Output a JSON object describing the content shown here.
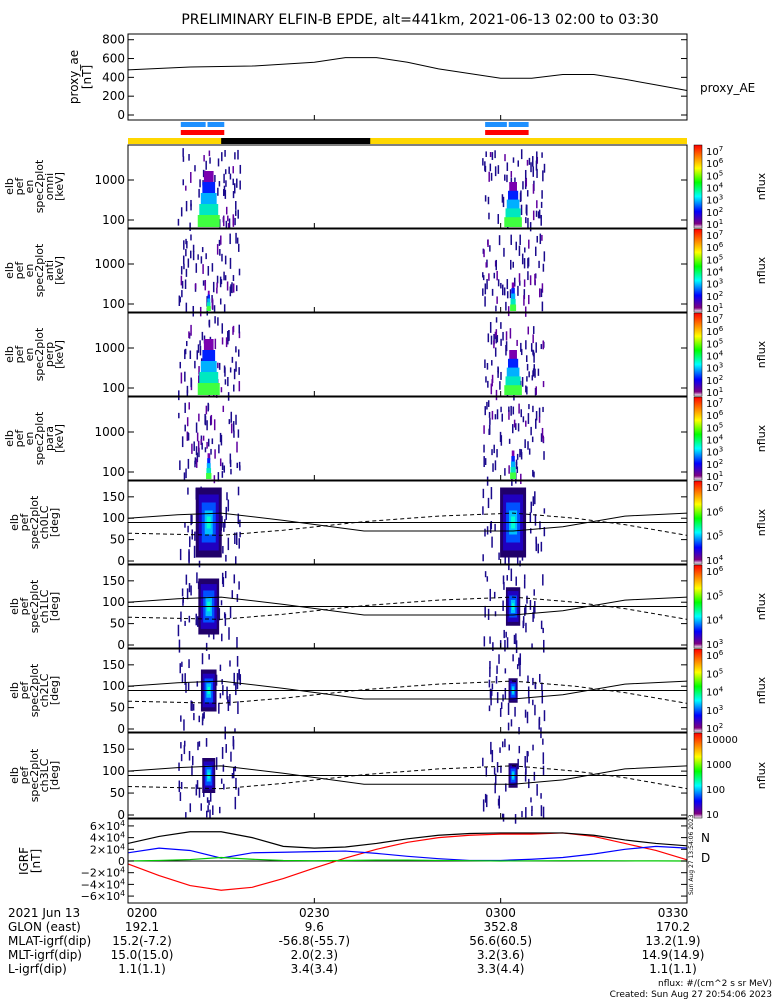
{
  "title": "PRELIMINARY ELFIN-B EPDE, alt=441km, 2021-06-13 02:00 to 03:30",
  "footer": {
    "units": "nflux: #/(cm^2 s sr MeV)",
    "created": "Created: Sun Aug 27 20:54:06 2023",
    "stamp": "Sun Aug 27 13:54:06 2023"
  },
  "colors": {
    "n_bar": "#1e90ff",
    "d_bar": "#ff0000",
    "sci_zone": "#ffd700",
    "eclipse": "#000000",
    "bx": "#ff0000",
    "by": "#00c800",
    "bz": "#0000ff",
    "bmag": "#000000"
  },
  "chart_data": [
    {
      "type": "line",
      "panel": "proxy_ae",
      "ylabel": [
        "proxy_ae",
        "[nT]"
      ],
      "legend": "proxy_AE",
      "yticks": [
        "800",
        "600",
        "400",
        "200",
        "0"
      ],
      "ylim": [
        0,
        850
      ],
      "x_minutes": [
        0,
        10,
        20,
        30,
        35,
        40,
        45,
        50,
        60,
        65,
        70,
        75,
        80,
        85,
        90
      ],
      "values": [
        480,
        510,
        520,
        560,
        610,
        610,
        560,
        490,
        390,
        390,
        430,
        430,
        380,
        320,
        260
      ]
    },
    {
      "type": "heatmap",
      "panel": "omni",
      "ylabel": [
        "elb",
        "pef",
        "en",
        "spec2plot",
        "omni",
        "[keV]"
      ],
      "yticks": [
        "1000",
        "100"
      ],
      "colorbar": {
        "label": "nflux",
        "ticks": [
          "10^7",
          "10^6",
          "10^5",
          "10^4",
          "10^3",
          "10^2",
          "10^1"
        ]
      }
    },
    {
      "type": "heatmap",
      "panel": "anti",
      "ylabel": [
        "elb",
        "pef",
        "en",
        "spec2plot",
        "anti",
        "[keV]"
      ],
      "yticks": [
        "1000",
        "100"
      ],
      "colorbar": {
        "label": "nflux",
        "ticks": [
          "10^7",
          "10^6",
          "10^5",
          "10^4",
          "10^3",
          "10^2",
          "10^1"
        ]
      }
    },
    {
      "type": "heatmap",
      "panel": "perp",
      "ylabel": [
        "elb",
        "pef",
        "en",
        "spec2plot",
        "perp",
        "[keV]"
      ],
      "yticks": [
        "1000",
        "100"
      ],
      "colorbar": {
        "label": "nflux",
        "ticks": [
          "10^7",
          "10^6",
          "10^5",
          "10^4",
          "10^3",
          "10^2",
          "10^1"
        ]
      }
    },
    {
      "type": "heatmap",
      "panel": "para",
      "ylabel": [
        "elb",
        "pef",
        "en",
        "spec2plot",
        "para",
        "[keV]"
      ],
      "yticks": [
        "1000",
        "100"
      ],
      "colorbar": {
        "label": "nflux",
        "ticks": [
          "10^7",
          "10^6",
          "10^5",
          "10^4",
          "10^3",
          "10^2",
          "10^1"
        ]
      }
    },
    {
      "type": "heatmap",
      "panel": "ch0LC",
      "ylabel": [
        "elb",
        "pef",
        "spec2plot",
        "ch0LC",
        "[deg]"
      ],
      "yticks": [
        "150",
        "100",
        "50",
        "0"
      ],
      "colorbar": {
        "label": "nflux",
        "ticks": [
          "10^7",
          "10^6",
          "10^5",
          "10^4"
        ]
      }
    },
    {
      "type": "heatmap",
      "panel": "ch1LC",
      "ylabel": [
        "elb",
        "pef",
        "spec2plot",
        "ch1LC",
        "[deg]"
      ],
      "yticks": [
        "150",
        "100",
        "50",
        "0"
      ],
      "colorbar": {
        "label": "nflux",
        "ticks": [
          "10^6",
          "10^5",
          "10^4",
          "10^3"
        ]
      }
    },
    {
      "type": "heatmap",
      "panel": "ch2LC",
      "ylabel": [
        "elb",
        "pef",
        "spec2plot",
        "ch2LC",
        "[deg]"
      ],
      "yticks": [
        "150",
        "100",
        "50",
        "0"
      ],
      "colorbar": {
        "label": "nflux",
        "ticks": [
          "10^6",
          "10^5",
          "10^4",
          "10^3",
          "10^2"
        ]
      }
    },
    {
      "type": "heatmap",
      "panel": "ch3LC",
      "ylabel": [
        "elb",
        "pef",
        "spec2plot",
        "ch3LC",
        "[deg]"
      ],
      "yticks": [
        "150",
        "100",
        "50",
        "0"
      ],
      "colorbar": {
        "label": "nflux",
        "ticks": [
          "10000",
          "1000",
          "100",
          "10"
        ]
      }
    },
    {
      "type": "line",
      "panel": "igrf",
      "ylabel": [
        "IGRF",
        "[nT]"
      ],
      "yticks": [
        "6×10^4",
        "4×10^4",
        "2×10^4",
        "0",
        "−2×10^4",
        "−4×10^4",
        "−6×10^4"
      ],
      "legend": [
        "N",
        "D"
      ],
      "ylim": [
        -65000,
        65000
      ],
      "x_minutes": [
        0,
        5,
        10,
        15,
        20,
        25,
        30,
        35,
        40,
        45,
        50,
        55,
        60,
        65,
        70,
        75,
        80,
        85,
        90
      ],
      "series": [
        {
          "values": [
            -5000,
            -25000,
            -42000,
            -50000,
            -45000,
            -30000,
            -12000,
            5000,
            20000,
            32000,
            40000,
            44000,
            46000,
            46000,
            48000,
            42000,
            30000,
            18000,
            2000
          ]
        },
        {
          "values": [
            14000,
            22000,
            18000,
            5000,
            14000,
            15000,
            16000,
            17000,
            13000,
            8000,
            4000,
            1000,
            1000,
            3000,
            6000,
            12000,
            20000,
            25000,
            22000
          ]
        },
        {
          "values": [
            0,
            1000,
            2500,
            6000,
            3000,
            1000,
            500,
            800,
            1500,
            1500,
            1000,
            500,
            0,
            300,
            500,
            400,
            300,
            200,
            0
          ]
        },
        {
          "values": [
            30000,
            42000,
            50000,
            50000,
            40000,
            25000,
            22000,
            24000,
            30000,
            38000,
            44000,
            47000,
            48000,
            48000,
            48000,
            44000,
            36000,
            30000,
            26000
          ]
        }
      ]
    }
  ],
  "xaxis": {
    "row_labels": [
      "2021 Jun 13",
      "GLON (east)",
      "MLAT-igrf(dip)",
      "MLT-igrf(dip)",
      "L-igrf(dip)"
    ],
    "columns": [
      {
        "time": "0200",
        "values": [
          "192.1",
          "15.2(-7.2)",
          "15.0(15.0)",
          "1.1(1.1)"
        ]
      },
      {
        "time": "0230",
        "values": [
          "9.6",
          "-56.8(-55.7)",
          "2.0(2.3)",
          "3.4(3.4)"
        ]
      },
      {
        "time": "0300",
        "values": [
          "352.8",
          "56.6(60.5)",
          "3.2(3.6)",
          "3.3(4.4)"
        ]
      },
      {
        "time": "0330",
        "values": [
          "170.2",
          "13.2(1.9)",
          "14.9(14.9)",
          "1.1(1.1)"
        ]
      }
    ]
  }
}
